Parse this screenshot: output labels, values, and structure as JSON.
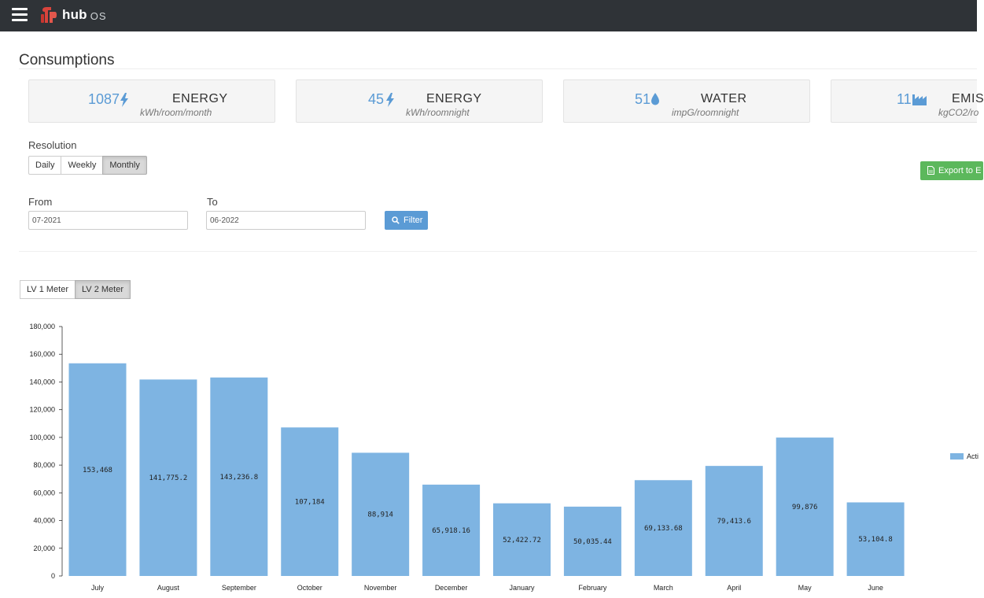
{
  "app": {
    "logo_text": "hub",
    "logo_sub": "OS"
  },
  "page": {
    "title": "Consumptions"
  },
  "cards": [
    {
      "value": "1087",
      "icon": "bolt-icon",
      "kind": "ENERGY",
      "unit": "kWh/room/month"
    },
    {
      "value": "45",
      "icon": "bolt-icon",
      "kind": "ENERGY",
      "unit": "kWh/roomnight"
    },
    {
      "value": "51",
      "icon": "water-drop-icon",
      "kind": "WATER",
      "unit": "impG/roomnight"
    },
    {
      "value": "11",
      "icon": "factory-icon",
      "kind": "EMIS",
      "unit": "kgCO2/ro"
    }
  ],
  "resolution": {
    "label": "Resolution",
    "options": [
      "Daily",
      "Weekly",
      "Monthly"
    ],
    "selected": "Monthly"
  },
  "export": {
    "label": "Export to E"
  },
  "filter": {
    "from_label": "From",
    "from_value": "07-2021",
    "to_label": "To",
    "to_value": "06-2022",
    "button_label": "Filter"
  },
  "meters": {
    "options": [
      "LV 1 Meter",
      "LV 2 Meter"
    ],
    "selected": "LV 2 Meter"
  },
  "colors": {
    "accent": "#5b9bd5",
    "bar": "#7eb4e2",
    "export": "#5cb85c",
    "topbar": "#2f3337"
  },
  "chart_data": {
    "type": "bar",
    "categories": [
      "July",
      "August",
      "September",
      "October",
      "November",
      "December",
      "January",
      "February",
      "March",
      "April",
      "May",
      "June"
    ],
    "series": [
      {
        "name": "Acti",
        "values": [
          153468,
          141775.2,
          143236.8,
          107184,
          88914,
          65918.16,
          52422.72,
          50035.44,
          69133.68,
          79413.6,
          99876,
          53104.8
        ]
      }
    ],
    "data_labels": [
      "153,468",
      "141,775.2",
      "143,236.8",
      "107,184",
      "88,914",
      "65,918.16",
      "52,422.72",
      "50,035.44",
      "69,133.68",
      "79,413.6",
      "99,876",
      "53,104.8"
    ],
    "ylim": [
      0,
      180000
    ],
    "yticks": [
      0,
      20000,
      40000,
      60000,
      80000,
      100000,
      120000,
      140000,
      160000,
      180000
    ],
    "ytick_labels": [
      "0",
      "20,000",
      "40,000",
      "60,000",
      "80,000",
      "100,000",
      "120,000",
      "140,000",
      "160,000",
      "180,000"
    ],
    "legend_position": "right",
    "grid": false
  }
}
